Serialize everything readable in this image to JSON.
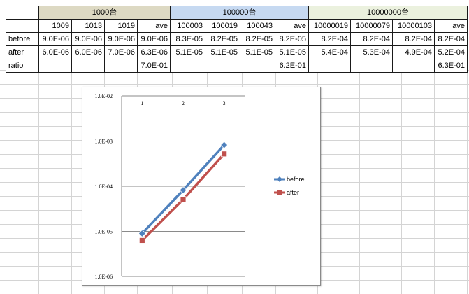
{
  "table": {
    "groups": [
      {
        "label": "1000台",
        "color": "#ddd9c3"
      },
      {
        "label": "100000台",
        "color": "#c6d9f1"
      },
      {
        "label": "10000000台",
        "color": "#ebf1de"
      }
    ],
    "header": [
      "",
      "1009",
      "1013",
      "1019",
      "ave",
      "100003",
      "100019",
      "100043",
      "ave",
      "10000019",
      "10000079",
      "10000103",
      "ave"
    ],
    "rows": [
      {
        "label": "before",
        "cells": [
          "9.0E-06",
          "9.0E-06",
          "9.0E-06",
          "9.0E-06",
          "8.3E-05",
          "8.2E-05",
          "8.2E-05",
          "8.2E-05",
          "8.2E-04",
          "8.2E-04",
          "8.2E-04",
          "8.2E-04"
        ]
      },
      {
        "label": "after",
        "cells": [
          "6.0E-06",
          "6.0E-06",
          "7.0E-06",
          "6.3E-06",
          "5.1E-05",
          "5.1E-05",
          "5.1E-05",
          "5.1E-05",
          "5.4E-04",
          "5.3E-04",
          "4.9E-04",
          "5.2E-04"
        ]
      },
      {
        "label": "ratio",
        "cells": [
          "",
          "",
          "",
          "7.0E-01",
          "",
          "",
          "",
          "6.2E-01",
          "",
          "",
          "",
          "6.3E-01"
        ]
      }
    ]
  },
  "chart_data": {
    "type": "line",
    "categories": [
      "1",
      "2",
      "3"
    ],
    "series": [
      {
        "name": "before",
        "values": [
          9e-06,
          8.2e-05,
          0.00082
        ],
        "color": "#4f81bd",
        "marker": "diamond"
      },
      {
        "name": "after",
        "values": [
          6.3e-06,
          5.1e-05,
          0.00052
        ],
        "color": "#c0504d",
        "marker": "square"
      }
    ],
    "yscale": "log",
    "ylim": [
      1e-06,
      0.01
    ],
    "ytick_labels": [
      "1.0E-02",
      "1.0E-03",
      "1.0E-04",
      "1.0E-05",
      "1.0E-06"
    ],
    "grid": true,
    "legend": "right",
    "xaxis_position": "top"
  }
}
